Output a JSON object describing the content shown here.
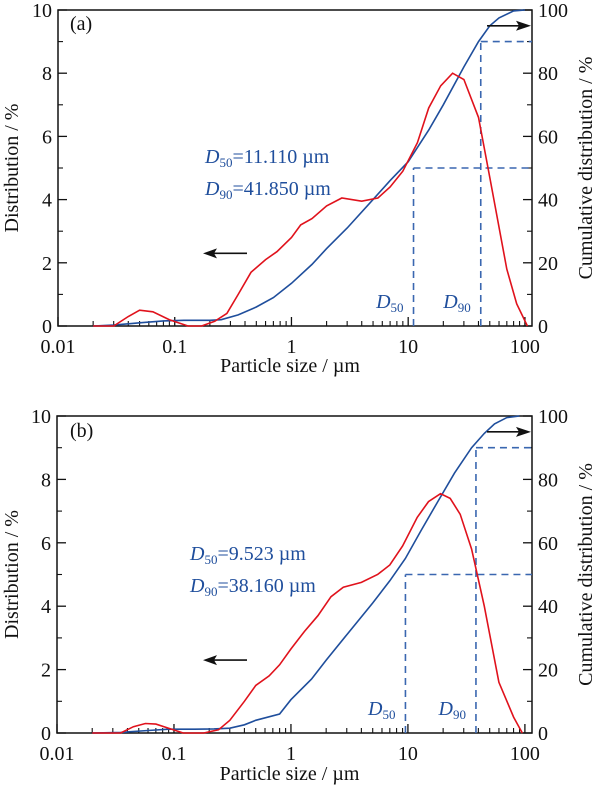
{
  "colors": {
    "distribution": "#e0121c",
    "cumulative": "#1f4e9c",
    "marker_lines": "#3a67b0",
    "axis": "#111111",
    "arrow": "#111111"
  },
  "chart_data": [
    {
      "panel_label": "(a)",
      "type": "line",
      "xscale": "log",
      "xlabel": "Particle size / µm",
      "ylabel_left": "Distribution / %",
      "ylabel_right": "Cumulative distribution / %",
      "xlim": [
        0.01,
        115
      ],
      "ylim_left": [
        0,
        10
      ],
      "ylim_right": [
        0,
        100
      ],
      "x_ticks": [
        0.01,
        0.1,
        1,
        10,
        100
      ],
      "x_tick_labels": [
        "0.01",
        "0.1",
        "1",
        "10",
        "100"
      ],
      "y_left_ticks": [
        0,
        2,
        4,
        6,
        8,
        10
      ],
      "y_left_tick_labels": [
        "0",
        "2",
        "4",
        "6",
        "8",
        "10"
      ],
      "y_right_ticks": [
        0,
        20,
        40,
        60,
        80,
        100
      ],
      "y_right_tick_labels": [
        "0",
        "20",
        "40",
        "60",
        "80",
        "100"
      ],
      "grid": false,
      "series": [
        {
          "name": "Distribution",
          "axis": "left",
          "x": [
            0.02,
            0.03,
            0.04,
            0.05,
            0.065,
            0.09,
            0.13,
            0.17,
            0.22,
            0.28,
            0.35,
            0.45,
            0.6,
            0.75,
            1.0,
            1.2,
            1.5,
            2.0,
            2.7,
            4.0,
            5.5,
            7.0,
            9.0,
            12,
            15,
            19,
            24,
            30,
            40,
            50,
            70,
            85,
            105
          ],
          "y": [
            0,
            0.0,
            0.3,
            0.5,
            0.45,
            0.2,
            0.0,
            0.0,
            0.15,
            0.4,
            1.0,
            1.7,
            2.1,
            2.35,
            2.8,
            3.2,
            3.4,
            3.8,
            4.05,
            3.95,
            4.05,
            4.4,
            4.9,
            5.8,
            6.9,
            7.6,
            8.0,
            7.8,
            6.6,
            4.7,
            1.8,
            0.7,
            0.0
          ]
        },
        {
          "name": "Cumulative distribution",
          "axis": "right",
          "x": [
            0.02,
            0.03,
            0.05,
            0.08,
            0.12,
            0.2,
            0.25,
            0.35,
            0.5,
            0.7,
            1.0,
            1.5,
            2.0,
            3.0,
            5.0,
            7.0,
            10,
            15,
            20,
            30,
            40,
            50,
            60,
            80,
            100
          ],
          "y": [
            0,
            0.3,
            1.0,
            1.6,
            1.8,
            1.8,
            2.0,
            3.5,
            6.0,
            9.0,
            13.5,
            19.5,
            24.5,
            31.0,
            40.0,
            46.0,
            52.0,
            62.0,
            70.0,
            82.0,
            90.0,
            95.0,
            97.5,
            99.7,
            100
          ]
        }
      ],
      "markers": [
        {
          "label": "D",
          "sub": "50",
          "x": 11.11,
          "cumulative": 50
        },
        {
          "label": "D",
          "sub": "90",
          "x": 41.85,
          "cumulative": 90
        }
      ],
      "annotations": {
        "d50_text": "=11.110 µm",
        "d90_text": "=41.850 µm",
        "d_symbol": "D",
        "d50_sub": "50",
        "d90_sub": "90"
      },
      "arrows": [
        {
          "direction": "left",
          "meaning": "left axis (distribution)"
        },
        {
          "direction": "right",
          "meaning": "right axis (cumulative)"
        }
      ]
    },
    {
      "panel_label": "(b)",
      "type": "line",
      "xscale": "log",
      "xlabel": "Particle size / µm",
      "ylabel_left": "Distribution / %",
      "ylabel_right": "Cumulative distribution / %",
      "xlim": [
        0.01,
        115
      ],
      "ylim_left": [
        0,
        10
      ],
      "ylim_right": [
        0,
        100
      ],
      "x_ticks": [
        0.01,
        0.1,
        1,
        10,
        100
      ],
      "x_tick_labels": [
        "0.01",
        "0.1",
        "1",
        "10",
        "100"
      ],
      "y_left_ticks": [
        0,
        2,
        4,
        6,
        8,
        10
      ],
      "y_left_tick_labels": [
        "0",
        "2",
        "4",
        "6",
        "8",
        "10"
      ],
      "y_right_ticks": [
        0,
        20,
        40,
        60,
        80,
        100
      ],
      "y_right_tick_labels": [
        "0",
        "20",
        "40",
        "60",
        "80",
        "100"
      ],
      "grid": false,
      "series": [
        {
          "name": "Distribution",
          "axis": "left",
          "x": [
            0.02,
            0.035,
            0.045,
            0.057,
            0.07,
            0.09,
            0.12,
            0.18,
            0.24,
            0.3,
            0.4,
            0.5,
            0.65,
            0.8,
            1.0,
            1.3,
            1.7,
            2.2,
            2.8,
            4.0,
            5.5,
            7.0,
            9.0,
            12,
            15,
            19,
            23,
            28,
            35,
            45,
            60,
            80,
            95
          ],
          "y": [
            0,
            0.0,
            0.2,
            0.3,
            0.28,
            0.15,
            0.0,
            0.0,
            0.1,
            0.4,
            1.0,
            1.5,
            1.8,
            2.15,
            2.65,
            3.2,
            3.7,
            4.3,
            4.6,
            4.75,
            5.0,
            5.3,
            5.9,
            6.8,
            7.3,
            7.55,
            7.4,
            6.9,
            5.8,
            4.0,
            1.6,
            0.5,
            0.0
          ]
        },
        {
          "name": "Cumulative distribution",
          "axis": "right",
          "x": [
            0.02,
            0.035,
            0.06,
            0.09,
            0.15,
            0.22,
            0.3,
            0.4,
            0.5,
            0.8,
            1.0,
            1.5,
            2.0,
            3.0,
            5.0,
            7.0,
            9.5,
            13,
            18,
            25,
            35,
            45,
            55,
            70,
            90
          ],
          "y": [
            0,
            0.2,
            0.8,
            1.2,
            1.2,
            1.3,
            1.5,
            2.6,
            4.0,
            6.0,
            10.5,
            17.0,
            23.0,
            31.0,
            41.0,
            48.0,
            55.0,
            64.0,
            73.0,
            82.0,
            90.0,
            94.5,
            97.5,
            99.5,
            100
          ]
        }
      ],
      "markers": [
        {
          "label": "D",
          "sub": "50",
          "x": 9.523,
          "cumulative": 50
        },
        {
          "label": "D",
          "sub": "90",
          "x": 38.16,
          "cumulative": 90
        }
      ],
      "annotations": {
        "d50_text": "=9.523 µm",
        "d90_text": "=38.160 µm",
        "d_symbol": "D",
        "d50_sub": "50",
        "d90_sub": "90"
      },
      "arrows": [
        {
          "direction": "left",
          "meaning": "left axis (distribution)"
        },
        {
          "direction": "right",
          "meaning": "right axis (cumulative)"
        }
      ]
    }
  ]
}
